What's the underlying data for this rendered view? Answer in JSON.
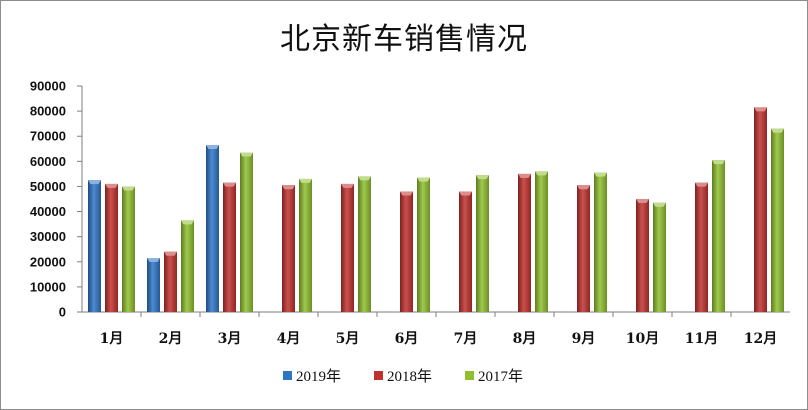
{
  "chart_data": {
    "type": "bar",
    "title": "北京新车销售情况",
    "categories": [
      "1月",
      "2月",
      "3月",
      "4月",
      "5月",
      "6月",
      "7月",
      "8月",
      "9月",
      "10月",
      "11月",
      "12月"
    ],
    "series": [
      {
        "name": "2019年",
        "color": "#2e75c6",
        "values": [
          52500,
          21500,
          66500,
          null,
          null,
          null,
          null,
          null,
          null,
          null,
          null,
          null
        ]
      },
      {
        "name": "2018年",
        "color": "#c0322f",
        "values": [
          51000,
          24000,
          51500,
          50500,
          51000,
          48000,
          48000,
          55000,
          50500,
          45000,
          51500,
          81500
        ]
      },
      {
        "name": "2017年",
        "color": "#8fbf2f",
        "values": [
          50000,
          36500,
          63500,
          53000,
          54000,
          53500,
          54500,
          56000,
          55500,
          43500,
          60500,
          73000
        ]
      }
    ],
    "ylim": [
      0,
      90000
    ],
    "yticks": [
      0,
      10000,
      20000,
      30000,
      40000,
      50000,
      60000,
      70000,
      80000,
      90000
    ],
    "xlabel": "",
    "ylabel": "",
    "grid": false,
    "legend_position": "bottom"
  }
}
